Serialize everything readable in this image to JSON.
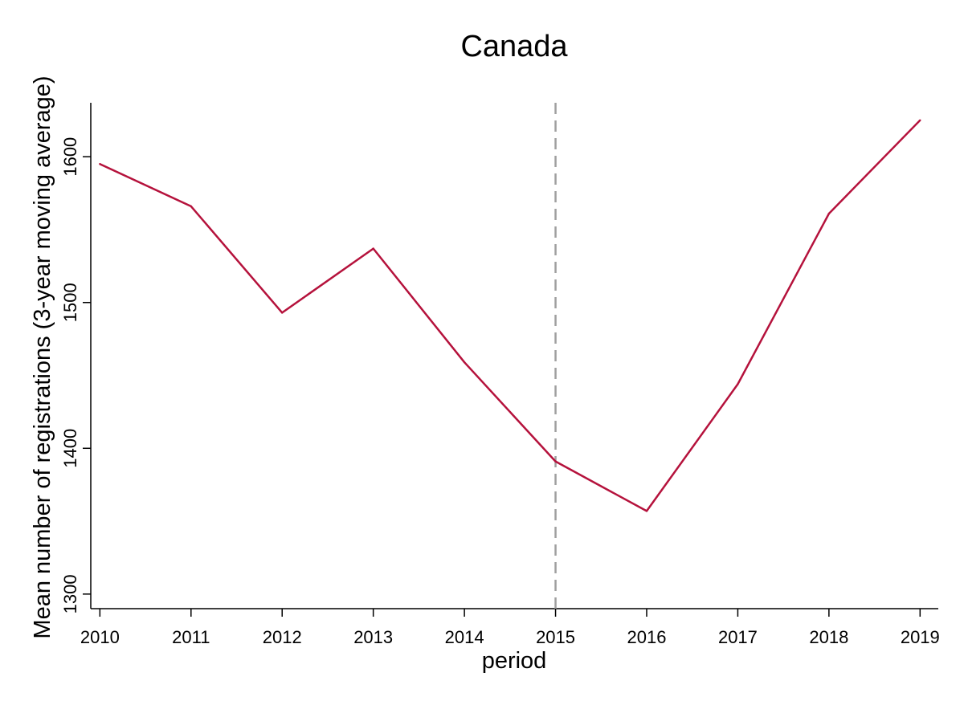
{
  "chart_data": {
    "type": "line",
    "title": "Canada",
    "xlabel": "period",
    "ylabel": "Mean number of registrations (3-year moving average)",
    "x": [
      2010,
      2011,
      2012,
      2013,
      2014,
      2015,
      2016,
      2017,
      2018,
      2019
    ],
    "series": [
      {
        "values": [
          1595,
          1566,
          1493,
          1537,
          1459,
          1391,
          1357,
          1444,
          1561,
          1625
        ],
        "color": "#b5123c"
      }
    ],
    "xlim": [
      2009.9,
      2019.2
    ],
    "ylim": [
      1290,
      1637
    ],
    "yticks": [
      1300,
      1400,
      1500,
      1600
    ],
    "xticks": [
      2010,
      2011,
      2012,
      2013,
      2014,
      2015,
      2016,
      2017,
      2018,
      2019
    ],
    "reference_line": {
      "x": 2015,
      "style": "dashed",
      "color": "#a0a0a0"
    },
    "grid": false,
    "legend": "none"
  }
}
